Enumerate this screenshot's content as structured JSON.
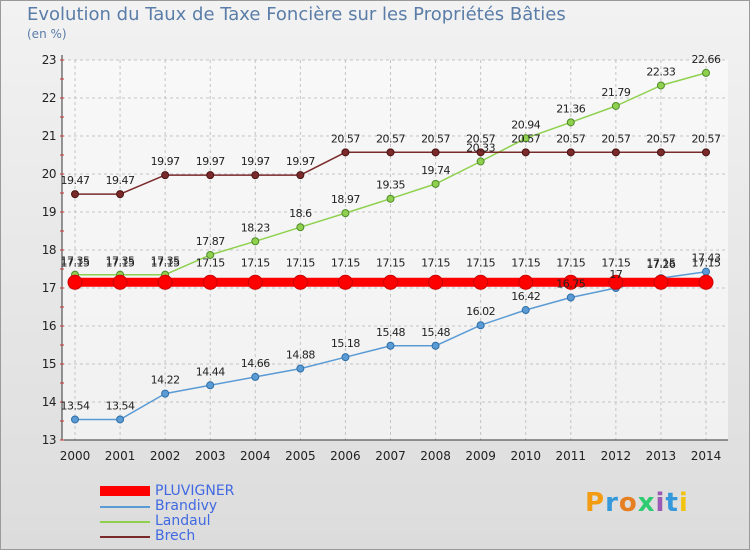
{
  "chart_data": {
    "type": "line",
    "title": "Evolution du Taux de Taxe Foncière sur les Propriétés Bâties",
    "ylabel": "(en %)",
    "xlabel": "",
    "categories": [
      "2000",
      "2001",
      "2002",
      "2003",
      "2004",
      "2005",
      "2006",
      "2007",
      "2008",
      "2009",
      "2010",
      "2011",
      "2012",
      "2013",
      "2014"
    ],
    "yticks": [
      13,
      14,
      15,
      16,
      17,
      18,
      19,
      20,
      21,
      22,
      23
    ],
    "ylim": [
      13,
      23
    ],
    "series": [
      {
        "name": "PLUVIGNER",
        "color": "#ff0000",
        "values": [
          17.15,
          17.15,
          17.15,
          17.15,
          17.15,
          17.15,
          17.15,
          17.15,
          17.15,
          17.15,
          17.15,
          17.15,
          17.15,
          17.15,
          17.15
        ]
      },
      {
        "name": "Brandivy",
        "color": "#5b9bd5",
        "values": [
          13.54,
          13.54,
          14.22,
          14.44,
          14.66,
          14.88,
          15.18,
          15.48,
          15.48,
          16.02,
          16.42,
          16.75,
          17,
          17.26,
          17.43
        ]
      },
      {
        "name": "Landaul",
        "color": "#8fd14f",
        "values": [
          17.35,
          17.35,
          17.35,
          17.87,
          18.23,
          18.6,
          18.97,
          19.35,
          19.74,
          20.33,
          20.94,
          21.36,
          21.79,
          22.33,
          22.66
        ]
      },
      {
        "name": "Brech",
        "color": "#7a2a2a",
        "values": [
          19.47,
          19.47,
          19.97,
          19.97,
          19.97,
          19.97,
          20.57,
          20.57,
          20.57,
          20.57,
          20.57,
          20.57,
          20.57,
          20.57,
          20.57
        ]
      }
    ],
    "legend_position": "bottom-left"
  },
  "labels": {
    "brandivy": [
      "13.54",
      "13.54",
      "14.22",
      "14.44",
      "14.66",
      "14.88",
      "15.18",
      "15.48",
      "15.48",
      "16.02",
      "16.42",
      "16.75",
      "17",
      "17.26",
      "17.43"
    ],
    "landaul": [
      "17.35",
      "17.35",
      "17.35",
      "17.87",
      "18.23",
      "18.6",
      "18.97",
      "19.35",
      "19.74",
      "20.33",
      "20.94",
      "21.36",
      "21.79",
      "22.33",
      "22.66"
    ],
    "brech": [
      "19.47",
      "19.47",
      "19.97",
      "19.97",
      "19.97",
      "19.97",
      "20.57",
      "20.57",
      "20.57",
      "20.57",
      "20.57",
      "20.57",
      "20.57",
      "20.57",
      "20.57"
    ],
    "pluvigner": [
      "17.15",
      "17.15",
      "17.15",
      "17.15",
      "17.15",
      "17.15",
      "17.15",
      "17.15",
      "17.15",
      "17.15",
      "17.15",
      "17.15",
      "17.15",
      "17.15",
      "17.15"
    ]
  },
  "legend": {
    "items": [
      "PLUVIGNER",
      "Brandivy",
      "Landaul",
      "Brech"
    ]
  },
  "logo": {
    "text": "Proxiti",
    "colors": [
      "#f39c12",
      "#3498db",
      "#e67e22",
      "#2ecc71",
      "#9b59b6",
      "#3498db",
      "#f1c40f"
    ]
  }
}
